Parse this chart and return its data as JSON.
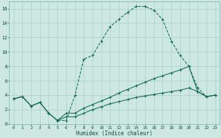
{
  "xlabel": "Humidex (Indice chaleur)",
  "bg_color": "#cce8e0",
  "grid_color": "#a8cfc8",
  "line_color": "#1a6b5a",
  "xlim": [
    -0.5,
    23.5
  ],
  "ylim": [
    0,
    17
  ],
  "xticks": [
    0,
    1,
    2,
    3,
    4,
    5,
    6,
    7,
    8,
    9,
    10,
    11,
    12,
    13,
    14,
    15,
    16,
    17,
    18,
    19,
    20,
    21,
    22,
    23
  ],
  "yticks": [
    0,
    2,
    4,
    6,
    8,
    10,
    12,
    14,
    16
  ],
  "series1_x": [
    0,
    1,
    2,
    3,
    4,
    5,
    6,
    7,
    8,
    9,
    10,
    11,
    12,
    13,
    14,
    15,
    16,
    17,
    18,
    19,
    20,
    21,
    22,
    23
  ],
  "series1_y": [
    3.5,
    3.8,
    2.5,
    3.0,
    1.5,
    0.5,
    0.5,
    4.0,
    9.0,
    9.5,
    11.5,
    13.5,
    14.5,
    15.5,
    16.3,
    16.3,
    15.8,
    14.5,
    11.5,
    9.5,
    8.0,
    5.0,
    3.8,
    4.0
  ],
  "series2_x": [
    0,
    1,
    2,
    3,
    4,
    5,
    6,
    7,
    8,
    9,
    10,
    11,
    12,
    13,
    14,
    15,
    16,
    17,
    18,
    19,
    20,
    21,
    22,
    23
  ],
  "series2_y": [
    3.5,
    3.8,
    2.5,
    3.0,
    1.5,
    0.5,
    1.5,
    1.5,
    2.2,
    2.7,
    3.2,
    3.7,
    4.3,
    4.8,
    5.3,
    5.8,
    6.3,
    6.7,
    7.1,
    7.5,
    8.0,
    4.5,
    3.8,
    4.0
  ],
  "series3_x": [
    0,
    1,
    2,
    3,
    4,
    5,
    6,
    7,
    8,
    9,
    10,
    11,
    12,
    13,
    14,
    15,
    16,
    17,
    18,
    19,
    20,
    21,
    22,
    23
  ],
  "series3_y": [
    3.5,
    3.8,
    2.5,
    3.0,
    1.5,
    0.5,
    1.0,
    1.0,
    1.5,
    2.0,
    2.4,
    2.8,
    3.1,
    3.4,
    3.7,
    3.9,
    4.1,
    4.3,
    4.5,
    4.7,
    5.0,
    4.5,
    3.8,
    4.0
  ]
}
